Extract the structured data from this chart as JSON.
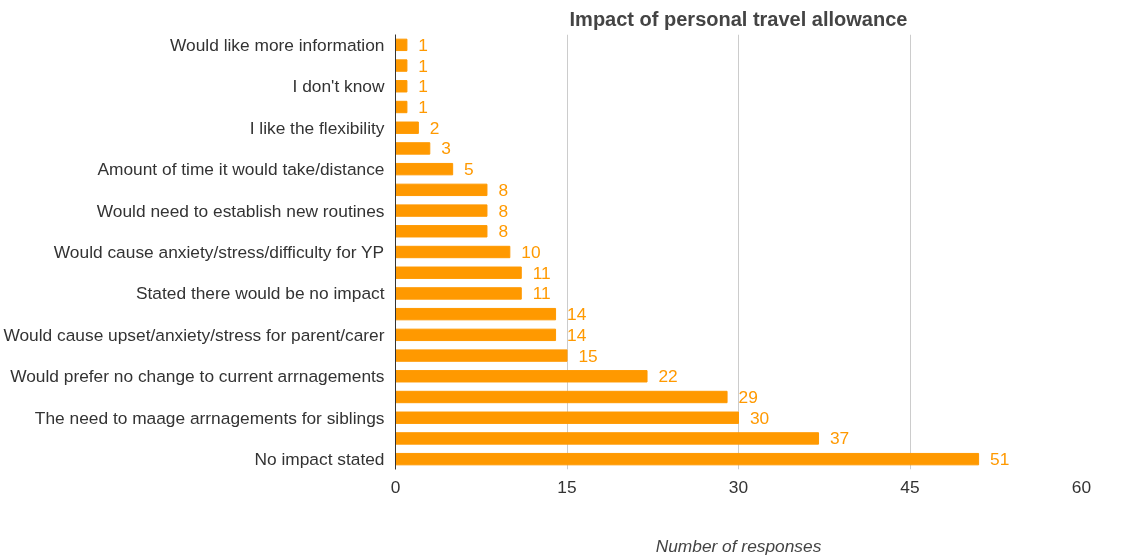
{
  "chart_data": {
    "type": "bar",
    "orientation": "horizontal",
    "title": "Impact of personal travel allowance",
    "xlabel": "Number of responses",
    "categories": [
      "Would like more information",
      null,
      "I don't know",
      null,
      "I like the flexibility",
      null,
      "Amount of time it would take/distance",
      null,
      "Would need to establish new routines",
      null,
      "Would cause anxiety/stress/difficulty for YP",
      null,
      "Stated there would be no impact",
      null,
      "Would cause upset/anxiety/stress for parent/carer",
      null,
      "Would prefer no change to current arrnagements",
      null,
      "The need to maage arrnagements for siblings",
      null,
      "No impact stated"
    ],
    "values": [
      1,
      1,
      1,
      1,
      2,
      3,
      5,
      8,
      8,
      8,
      10,
      11,
      11,
      14,
      14,
      15,
      22,
      29,
      30,
      37,
      51
    ],
    "color": "#ff9900",
    "xlim": [
      0,
      60
    ],
    "xticks": [
      0,
      15,
      30,
      45,
      60
    ],
    "grid": "x",
    "data_labels": true
  }
}
